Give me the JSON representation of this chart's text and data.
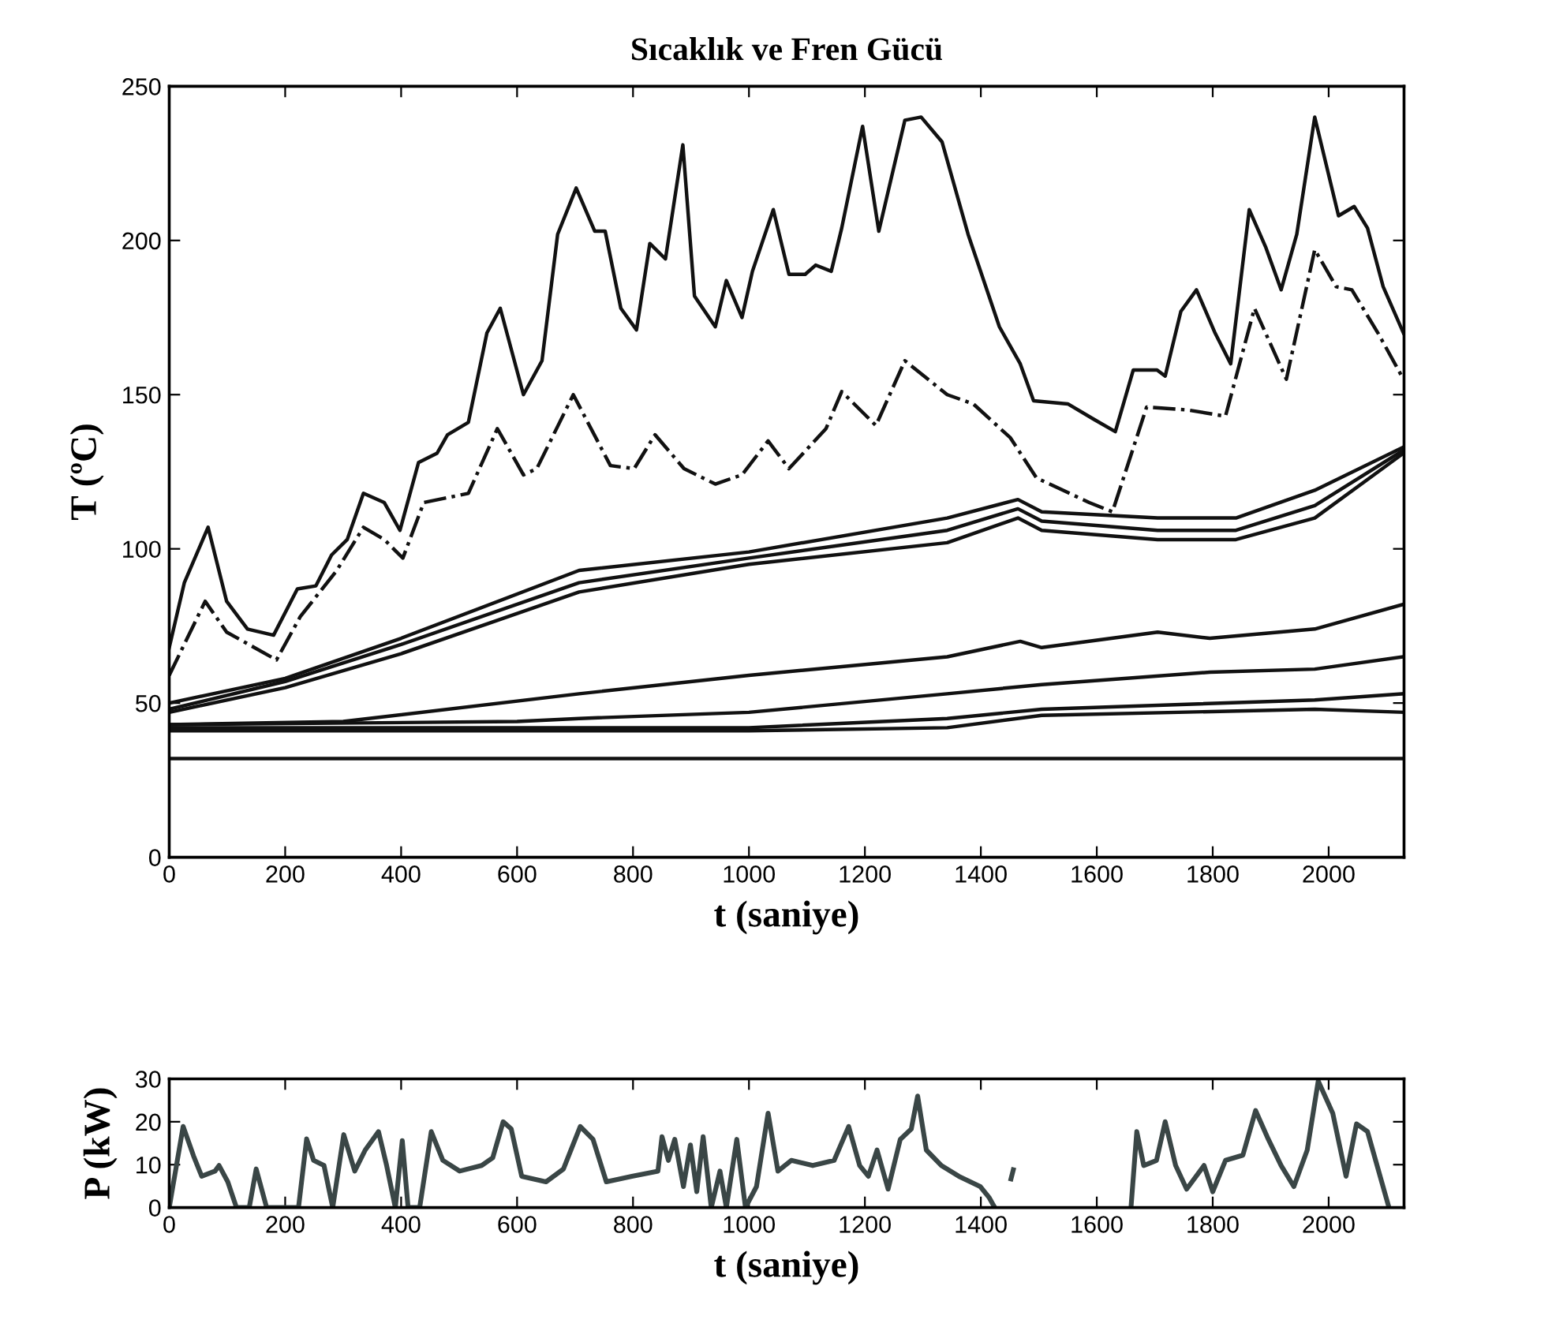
{
  "chart_data": [
    {
      "type": "line",
      "title": "Sıcaklık ve Fren Gücü",
      "xlabel": "t (saniye)",
      "ylabel": "T (ºC)",
      "xlim": [
        0,
        2130
      ],
      "ylim": [
        0,
        250
      ],
      "xticks": [
        0,
        200,
        400,
        600,
        800,
        1000,
        1200,
        1400,
        1600,
        1800,
        2000
      ],
      "yticks": [
        0,
        50,
        100,
        150,
        200,
        250
      ],
      "grid": false,
      "legend": false,
      "series": [
        {
          "color": "#111111",
          "line_style": "solid",
          "x": [
            0,
            26,
            67,
            99,
            135,
            180,
            221,
            253,
            280,
            307,
            335,
            371,
            398,
            430,
            462,
            480,
            516,
            548,
            571,
            611,
            643,
            670,
            702,
            734,
            752,
            779,
            806,
            829,
            856,
            886,
            906,
            942,
            961,
            988,
            1006,
            1042,
            1069,
            1097,
            1115,
            1142,
            1160,
            1196,
            1224,
            1269,
            1297,
            1333,
            1378,
            1432,
            1468,
            1491,
            1550,
            1595,
            1632,
            1663,
            1704,
            1718,
            1745,
            1772,
            1804,
            1831,
            1863,
            1891,
            1918,
            1945,
            1976,
            2017,
            2044,
            2067,
            2094,
            2129
          ],
          "values": [
            68,
            89,
            107,
            83,
            74,
            72,
            87,
            88,
            98,
            103,
            118,
            115,
            106,
            128,
            131,
            137,
            141,
            170,
            178,
            150,
            161,
            202,
            217,
            203,
            203,
            178,
            171,
            199,
            194,
            231,
            182,
            172,
            187,
            175,
            190,
            210,
            189,
            189,
            192,
            190,
            204,
            237,
            203,
            239,
            240,
            232,
            202,
            172,
            160,
            148,
            147,
            142,
            138,
            158,
            158,
            156,
            177,
            184,
            170,
            160,
            210,
            198,
            184,
            202,
            240,
            208,
            211,
            204,
            185,
            170
          ]
        },
        {
          "color": "#111111",
          "line_style": "dashdot",
          "x": [
            0,
            62,
            99,
            185,
            226,
            289,
            335,
            371,
            403,
            439,
            516,
            566,
            611,
            634,
            697,
            761,
            802,
            838,
            888,
            942,
            988,
            1033,
            1069,
            1133,
            1160,
            1219,
            1269,
            1342,
            1387,
            1451,
            1496,
            1587,
            1627,
            1686,
            1758,
            1822,
            1872,
            1927,
            1976,
            2013,
            2040,
            2085,
            2129
          ],
          "values": [
            59,
            83,
            73,
            64,
            78,
            93,
            107,
            103,
            97,
            115,
            118,
            139,
            124,
            126,
            150,
            127,
            126,
            137,
            126,
            121,
            124,
            135,
            126,
            139,
            151,
            140,
            161,
            150,
            147,
            136,
            123,
            115,
            112,
            146,
            145,
            143,
            178,
            155,
            197,
            185,
            184,
            170,
            155
          ]
        },
        {
          "color": "#111111",
          "line_style": "solid",
          "x": [
            0,
            200,
            400,
            707,
            1000,
            1342,
            1464,
            1505,
            1705,
            1840,
            1976,
            2129
          ],
          "values": [
            50,
            58,
            71,
            93,
            99,
            110,
            116,
            112,
            110,
            110,
            119,
            133
          ]
        },
        {
          "color": "#111111",
          "line_style": "solid",
          "x": [
            0,
            200,
            400,
            707,
            1000,
            1342,
            1464,
            1505,
            1705,
            1840,
            1976,
            2129
          ],
          "values": [
            48,
            57,
            69,
            89,
            97,
            106,
            113,
            109,
            106,
            106,
            114,
            132
          ]
        },
        {
          "color": "#111111",
          "line_style": "solid",
          "x": [
            0,
            200,
            400,
            707,
            1000,
            1342,
            1464,
            1505,
            1705,
            1840,
            1976,
            2129
          ],
          "values": [
            47,
            55,
            66,
            86,
            95,
            102,
            110,
            106,
            103,
            103,
            110,
            131
          ]
        },
        {
          "color": "#111111",
          "line_style": "solid",
          "x": [
            0,
            300,
            707,
            1000,
            1342,
            1468,
            1505,
            1705,
            1795,
            1976,
            2129
          ],
          "values": [
            43,
            44,
            53,
            59,
            65,
            70,
            68,
            73,
            71,
            74,
            82
          ]
        },
        {
          "color": "#111111",
          "line_style": "solid",
          "x": [
            0,
            600,
            707,
            1000,
            1342,
            1505,
            1795,
            1976,
            2129
          ],
          "values": [
            43,
            44,
            45,
            47,
            53,
            56,
            60,
            61,
            65
          ]
        },
        {
          "color": "#111111",
          "line_style": "solid",
          "x": [
            0,
            1000,
            1342,
            1505,
            1976,
            2129
          ],
          "values": [
            42,
            42,
            45,
            48,
            51,
            53
          ]
        },
        {
          "color": "#111111",
          "line_style": "solid",
          "x": [
            0,
            1000,
            1342,
            1505,
            1976,
            2129
          ],
          "values": [
            41,
            41,
            42,
            46,
            48,
            47
          ]
        },
        {
          "color": "#111111",
          "line_style": "solid",
          "x": [
            0,
            2129
          ],
          "values": [
            32,
            32
          ]
        }
      ]
    },
    {
      "type": "line",
      "xlabel": "t (saniye)",
      "ylabel": "P (kW)",
      "xlim": [
        0,
        2130
      ],
      "ylim": [
        0,
        30
      ],
      "xticks": [
        0,
        200,
        400,
        600,
        800,
        1000,
        1200,
        1400,
        1600,
        1800,
        2000
      ],
      "yticks": [
        0,
        10,
        20,
        30
      ],
      "grid": false,
      "legend": false,
      "series": [
        {
          "color": "#3a4646",
          "line_style": "solid",
          "x": [
            0,
            24,
            42,
            56,
            79,
            86,
            101,
            116,
            138,
            150,
            168,
            223,
            237,
            249,
            267,
            282,
            301,
            320,
            338,
            361,
            375,
            390,
            402,
            412,
            432,
            452,
            472,
            501,
            539,
            558,
            576,
            590,
            608,
            650,
            680,
            709,
            731,
            754,
            798,
            843,
            850,
            861,
            872,
            887,
            899,
            910,
            921,
            935,
            950,
            961,
            979,
            994,
            1013,
            1033,
            1050,
            1073,
            1110,
            1147,
            1172,
            1191,
            1206,
            1221,
            1240,
            1261,
            1280,
            1291,
            1306,
            1332,
            1362,
            1399,
            1414,
            1424,
            1440,
            1452,
            1456,
            1500,
            1659,
            1669,
            1681,
            1703,
            1718,
            1736,
            1755,
            1785,
            1800,
            1822,
            1852,
            1874,
            1896,
            1918,
            1940,
            1963,
            1982,
            2007,
            2030,
            2048,
            2067,
            2104
          ],
          "values": [
            0,
            18.9,
            12,
            7.3,
            8.5,
            9.8,
            6,
            0,
            0,
            9,
            0,
            0,
            16,
            11,
            9.8,
            0,
            17,
            8.5,
            13.4,
            17.7,
            9.8,
            0,
            15.6,
            0,
            0,
            17.7,
            11,
            8.5,
            9.8,
            11.6,
            20,
            18.3,
            7.3,
            6,
            9,
            18.9,
            15.9,
            6,
            7.3,
            8.5,
            16.5,
            11,
            15.9,
            4.9,
            14.6,
            3.7,
            16.5,
            0,
            8.5,
            0,
            15.9,
            0,
            4.9,
            22,
            8.5,
            11,
            9.8,
            11,
            18.9,
            9.8,
            7.3,
            13.4,
            4.3,
            15.9,
            18.3,
            26,
            13.4,
            9.8,
            7.3,
            4.9,
            2.4,
            0,
            null,
            6.7,
            8.8,
            null,
            0,
            17.7,
            9.8,
            11,
            20,
            9.8,
            4.3,
            9.8,
            3.7,
            11,
            12.2,
            22.6,
            15.9,
            9.8,
            4.9,
            13.4,
            29.5,
            22,
            7.3,
            19.5,
            17.7,
            0
          ]
        }
      ]
    }
  ]
}
